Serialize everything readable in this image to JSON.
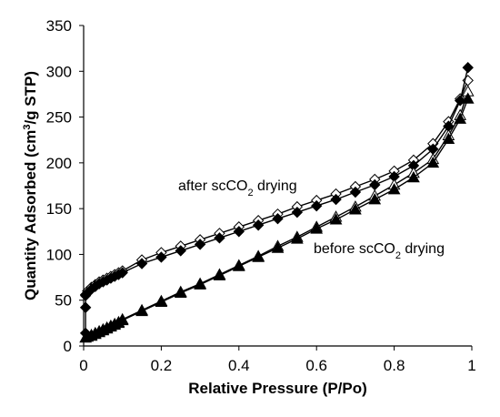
{
  "chart_data": {
    "type": "scatter",
    "xlabel": "Relative Pressure (P/Po)",
    "ylabel_main": "Quantity Adsorbed (cm",
    "ylabel_sup": "3",
    "ylabel_rest": "/g STP)",
    "xlim": [
      0,
      1
    ],
    "ylim": [
      0,
      350
    ],
    "x_ticks": [
      "0",
      "0.2",
      "0.4",
      "0.6",
      "0.8",
      "1"
    ],
    "y_ticks": [
      "0",
      "50",
      "100",
      "150",
      "200",
      "250",
      "300",
      "350"
    ],
    "grid": false,
    "legend": "none",
    "annotations": [
      {
        "text_pre": "after scCO",
        "text_sub": "2",
        "text_post": " drying",
        "x": 0.24,
        "y": 172
      },
      {
        "text_pre": "before scCO",
        "text_sub": "2",
        "text_post": " drying",
        "x": 0.6,
        "y": 102
      }
    ],
    "series": [
      {
        "marker": "diamond-open",
        "x": [
          0.005,
          0.01,
          0.02,
          0.03,
          0.04,
          0.05,
          0.06,
          0.07,
          0.08,
          0.09,
          0.1,
          0.15,
          0.2,
          0.25,
          0.3,
          0.35,
          0.4,
          0.45,
          0.5,
          0.55,
          0.6,
          0.65,
          0.7,
          0.75,
          0.8,
          0.85,
          0.9,
          0.94,
          0.97,
          0.99
        ],
        "y": [
          56,
          60,
          64,
          67,
          70,
          72,
          74,
          76,
          78,
          80,
          82,
          94,
          102,
          109,
          116,
          123,
          130,
          137,
          144,
          152,
          159,
          166,
          174,
          182,
          191,
          203,
          221,
          245,
          270,
          290
        ]
      },
      {
        "marker": "diamond-filled",
        "x": [
          0.005,
          0.005,
          0.005,
          0.01,
          0.02,
          0.03,
          0.04,
          0.05,
          0.06,
          0.07,
          0.08,
          0.09,
          0.1,
          0.15,
          0.2,
          0.25,
          0.3,
          0.35,
          0.4,
          0.45,
          0.5,
          0.55,
          0.6,
          0.65,
          0.7,
          0.75,
          0.8,
          0.85,
          0.9,
          0.94,
          0.97,
          0.99
        ],
        "y": [
          14,
          42,
          55,
          58,
          62,
          65,
          68,
          70,
          72,
          74,
          76,
          78,
          80,
          90,
          97,
          104,
          111,
          118,
          125,
          132,
          139,
          146,
          153,
          160,
          168,
          176,
          185,
          197,
          215,
          240,
          268,
          304
        ]
      },
      {
        "marker": "triangle-open",
        "x": [
          0.01,
          0.02,
          0.03,
          0.04,
          0.05,
          0.06,
          0.07,
          0.08,
          0.09,
          0.1,
          0.15,
          0.2,
          0.25,
          0.3,
          0.35,
          0.4,
          0.45,
          0.5,
          0.55,
          0.6,
          0.65,
          0.7,
          0.75,
          0.8,
          0.85,
          0.9,
          0.94,
          0.97,
          0.99
        ],
        "y": [
          11,
          12,
          14,
          16,
          18,
          20,
          22,
          24,
          26,
          29,
          39,
          49,
          59,
          68,
          78,
          88,
          98,
          109,
          119,
          130,
          141,
          152,
          164,
          176,
          189,
          204,
          230,
          252,
          278
        ]
      },
      {
        "marker": "triangle-filled",
        "x": [
          0.005,
          0.01,
          0.02,
          0.03,
          0.04,
          0.05,
          0.06,
          0.07,
          0.08,
          0.09,
          0.1,
          0.15,
          0.2,
          0.25,
          0.3,
          0.35,
          0.4,
          0.45,
          0.5,
          0.55,
          0.6,
          0.65,
          0.7,
          0.75,
          0.8,
          0.85,
          0.9,
          0.94,
          0.97,
          0.99
        ],
        "y": [
          9,
          10,
          11,
          13,
          15,
          17,
          19,
          21,
          23,
          25,
          28,
          38,
          48,
          58,
          67,
          77,
          87,
          97,
          107,
          117,
          128,
          138,
          149,
          160,
          171,
          184,
          200,
          226,
          248,
          270
        ]
      }
    ]
  }
}
